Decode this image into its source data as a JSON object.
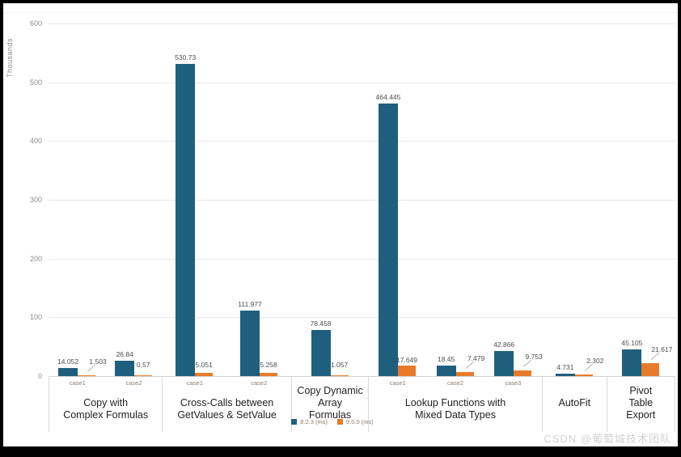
{
  "watermark": "CSDN @葡萄城技术团队",
  "chart_data": {
    "type": "bar",
    "title": "",
    "ylabel": "Thousands",
    "ylim": [
      0,
      600
    ],
    "yticks": [
      0,
      100,
      200,
      300,
      400,
      500,
      600
    ],
    "grid": true,
    "legend_position": "bottom-center",
    "series": [
      {
        "name": "8.2.3 (ms)",
        "color": "#1e5f7e"
      },
      {
        "name": "9.0.0 (ms)",
        "color": "#e87b2a"
      }
    ],
    "groups": [
      {
        "label": "Copy with\nComplex Formulas",
        "cases": [
          {
            "label": "case1",
            "values": [
              14.052,
              1.503
            ],
            "leader": true
          },
          {
            "label": "case2",
            "values": [
              26.84,
              0.57
            ],
            "leader": false
          }
        ]
      },
      {
        "label": "Cross-Calls between\nGetValues & SetValue",
        "cases": [
          {
            "label": "case1",
            "values": [
              530.73,
              5.051
            ],
            "leader": false
          },
          {
            "label": "case2",
            "values": [
              111.977,
              5.258
            ],
            "leader": false
          }
        ]
      },
      {
        "label": "Copy Dynamic\nArray\nFormulas",
        "cases": [
          {
            "label": "",
            "values": [
              78.458,
              1.057
            ],
            "leader": false
          }
        ]
      },
      {
        "label": "Lookup Functions with\nMixed Data Types",
        "cases": [
          {
            "label": "case1",
            "values": [
              464.445,
              17.649
            ],
            "leader": false
          },
          {
            "label": "case2",
            "values": [
              18.45,
              7.479
            ],
            "leader": true
          },
          {
            "label": "case3",
            "values": [
              42.866,
              9.753
            ],
            "leader": true
          }
        ]
      },
      {
        "label": "AutoFit",
        "cases": [
          {
            "label": "",
            "values": [
              4.731,
              2.302
            ],
            "leader": true
          }
        ]
      },
      {
        "label": "Pivot\nTable\nExport",
        "cases": [
          {
            "label": "",
            "values": [
              45.105,
              21.617
            ],
            "leader": true
          }
        ]
      }
    ],
    "group_widths_pct": [
      18.1,
      20.6,
      12.3,
      27.7,
      10.3,
      11.0
    ]
  }
}
